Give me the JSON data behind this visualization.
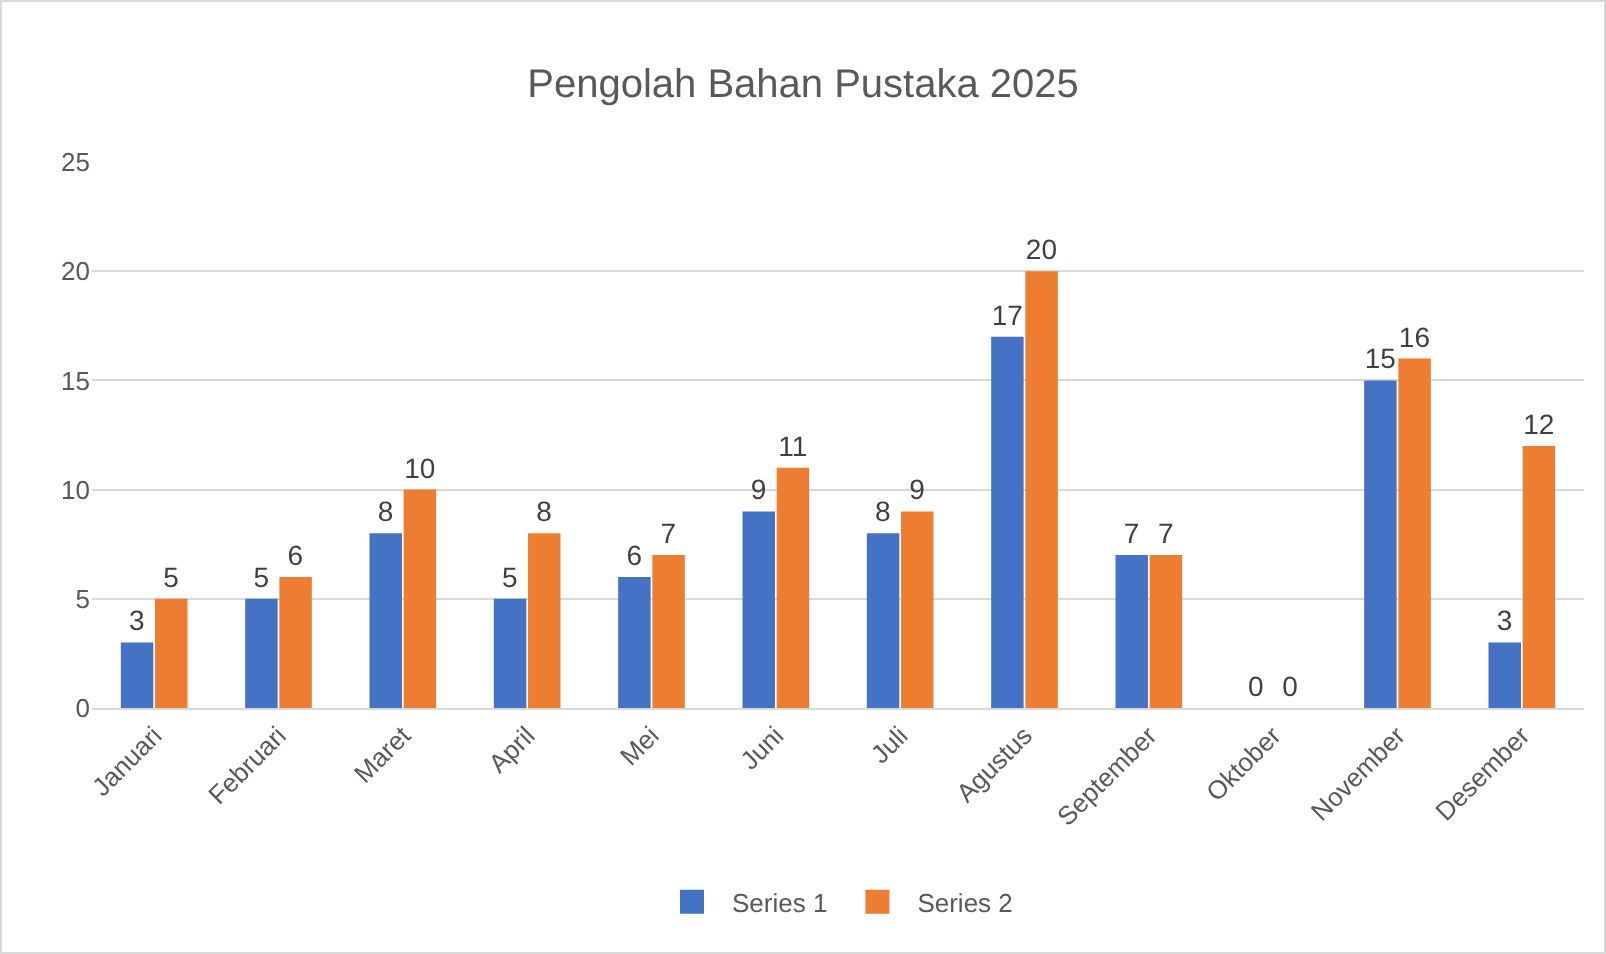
{
  "chart_data": {
    "type": "bar",
    "title": "Pengolah Bahan Pustaka 2025",
    "categories": [
      "Januari",
      "Februari",
      "Maret",
      "April",
      "Mei",
      "Juni",
      "Juli",
      "Agustus",
      "September",
      "Oktober",
      "November",
      "Desember"
    ],
    "series": [
      {
        "name": "Series 1",
        "color": "#4472c4",
        "values": [
          3,
          5,
          8,
          5,
          6,
          9,
          8,
          17,
          7,
          0,
          15,
          3
        ]
      },
      {
        "name": "Series 2",
        "color": "#ed7d31",
        "values": [
          5,
          6,
          10,
          8,
          7,
          11,
          9,
          20,
          7,
          0,
          16,
          12
        ]
      }
    ],
    "ylim": [
      0,
      25
    ],
    "yticks": [
      0,
      5,
      10,
      15,
      20,
      25
    ],
    "grid": "y",
    "legend": "bottom",
    "data_labels": true
  }
}
